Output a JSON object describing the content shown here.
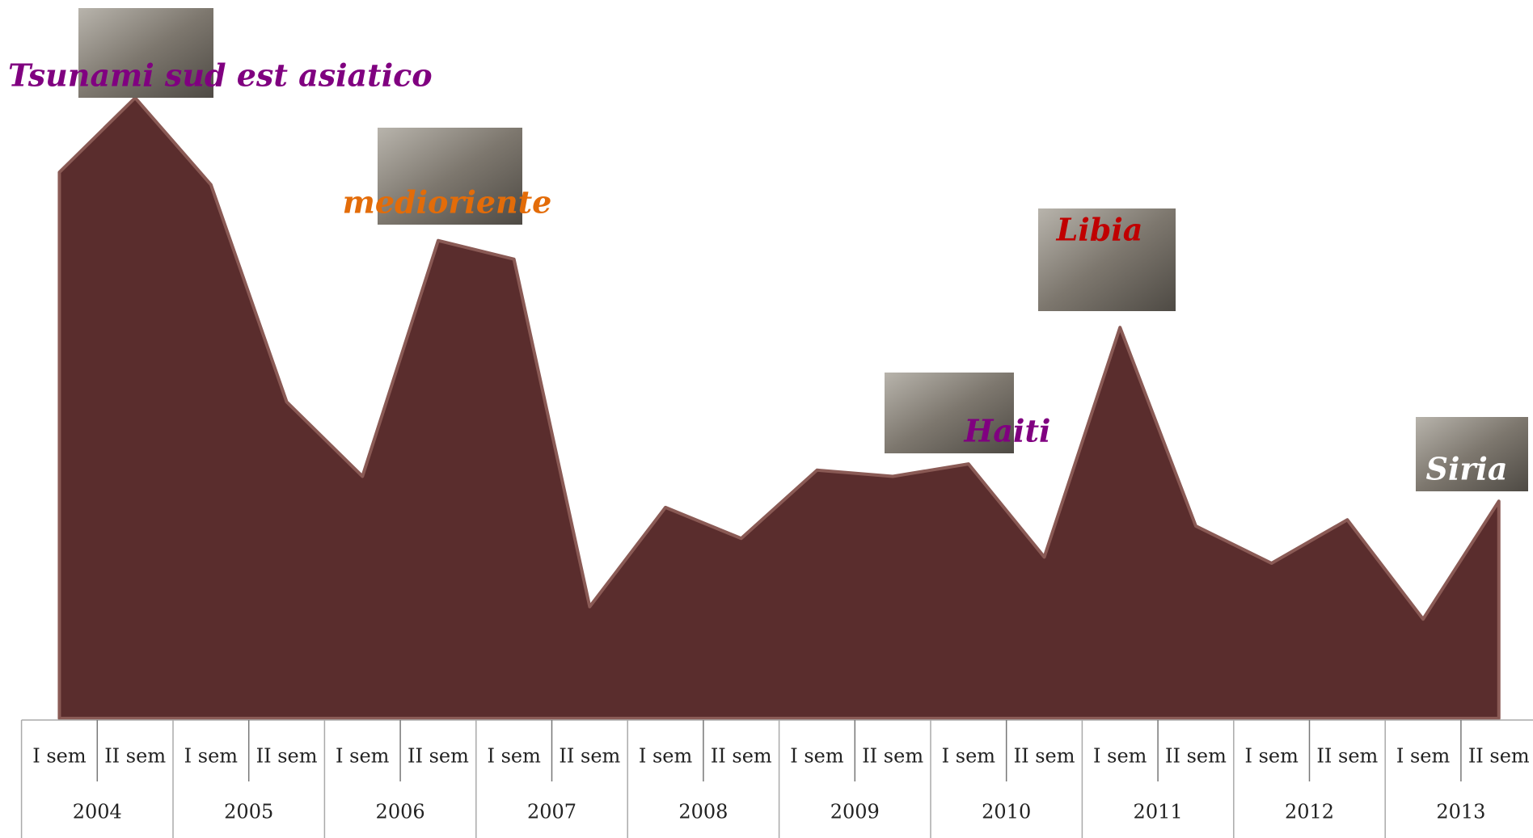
{
  "chart_data": {
    "type": "area",
    "categories": [
      "I sem",
      "II sem",
      "I sem",
      "II sem",
      "I sem",
      "II sem",
      "I sem",
      "II sem",
      "I sem",
      "II sem",
      "I sem",
      "II sem",
      "I sem",
      "II sem",
      "I sem",
      "II sem",
      "I sem",
      "II sem",
      "I sem",
      "II sem"
    ],
    "groups": [
      "2004",
      "2005",
      "2006",
      "2007",
      "2008",
      "2009",
      "2010",
      "2011",
      "2012",
      "2013"
    ],
    "values": [
      88,
      100,
      86,
      51,
      39,
      77,
      74,
      18,
      34,
      29,
      40,
      39,
      41,
      26,
      63,
      31,
      25,
      32,
      16,
      35
    ],
    "color": "#5a2d2d",
    "ylim": [
      0,
      100
    ],
    "annotations": [
      {
        "text": "Tsunami sud est asiatico",
        "color": "#800080"
      },
      {
        "text": "medioriente",
        "color": "#e36c09"
      },
      {
        "text": "Libia",
        "color": "#c00000"
      },
      {
        "text": "Haiti",
        "color": "#800080"
      },
      {
        "text": "Siria",
        "color": "#ffffff"
      }
    ]
  }
}
